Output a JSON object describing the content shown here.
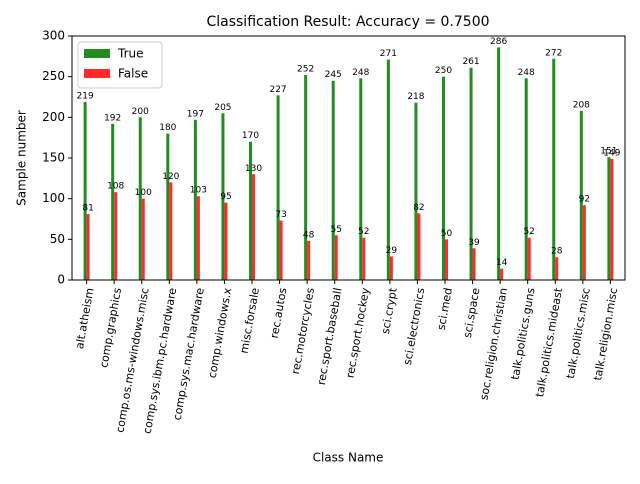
{
  "chart_data": {
    "type": "bar",
    "title": "Classification Result: Accuracy = 0.7500",
    "x_label": "Class Name",
    "y_label": "Sample number",
    "categories": [
      "alt.atheism",
      "comp.graphics",
      "comp.os.ms-windows.misc",
      "comp.sys.ibm.pc.hardware",
      "comp.sys.mac.hardware",
      "comp.windows.x",
      "misc.forsale",
      "rec.autos",
      "rec.motorcycles",
      "rec.sport.baseball",
      "rec.sport.hockey",
      "sci.crypt",
      "sci.electronics",
      "sci.med",
      "sci.space",
      "soc.religion.christian",
      "talk.politics.guns",
      "talk.politics.mideast",
      "talk.politics.misc",
      "talk.religion.misc"
    ],
    "series": [
      {
        "name": "True",
        "color": "#228b22",
        "values": [
          219,
          192,
          200,
          180,
          197,
          205,
          170,
          227,
          252,
          245,
          248,
          271,
          218,
          250,
          261,
          286,
          248,
          272,
          208,
          151
        ]
      },
      {
        "name": "False",
        "color": "#ff2b2b",
        "values": [
          81,
          108,
          100,
          120,
          103,
          95,
          130,
          73,
          48,
          55,
          52,
          29,
          82,
          50,
          39,
          14,
          52,
          28,
          92,
          149
        ]
      }
    ],
    "ylim": [
      0,
      300
    ],
    "yticks": [
      0,
      50,
      100,
      150,
      200,
      250,
      300
    ],
    "legend": "upper left"
  }
}
